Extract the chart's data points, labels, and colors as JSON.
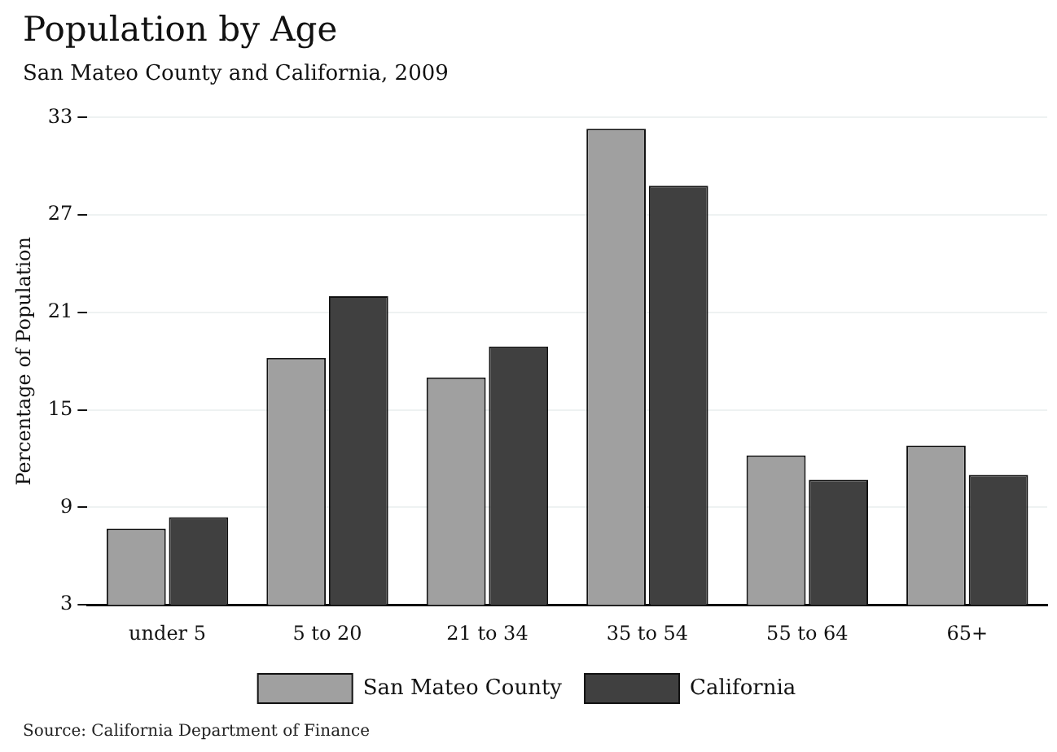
{
  "chart_data": {
    "type": "bar",
    "title": "Population by Age",
    "subtitle": "San Mateo County and California, 2009",
    "ylabel": "Percentage of Population",
    "categories": [
      "under 5",
      "5 to 20",
      "21 to 34",
      "35 to 54",
      "55 to 64",
      "65+"
    ],
    "series": [
      {
        "name": "San Mateo County",
        "color": "#a0a0a0",
        "values": [
          7.7,
          18.2,
          17.0,
          32.3,
          12.2,
          12.8
        ]
      },
      {
        "name": "California",
        "color": "#404040",
        "values": [
          8.4,
          22.0,
          18.9,
          28.8,
          10.7,
          11.0
        ]
      }
    ],
    "ylim": [
      3,
      33
    ],
    "yticks": [
      3,
      9,
      15,
      21,
      27,
      33
    ],
    "grid": "y",
    "legend": "bottom",
    "annotations": [
      "Source: California Department of Finance"
    ]
  }
}
